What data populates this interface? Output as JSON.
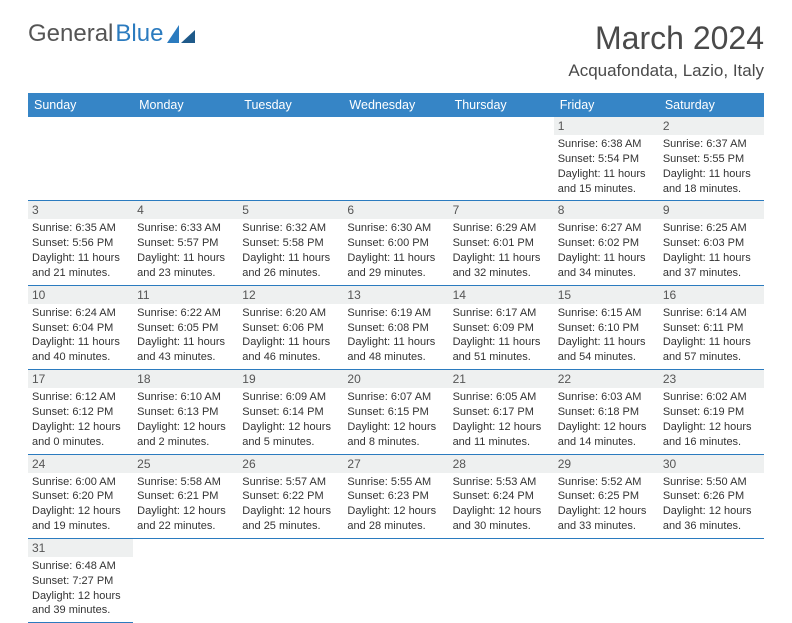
{
  "logo": {
    "general": "General",
    "blue": "Blue"
  },
  "header": {
    "title": "March 2024",
    "location": "Acquafondata, Lazio, Italy"
  },
  "colors": {
    "header_bg": "#3685c6",
    "border": "#2b7bbf",
    "daynum_bg": "#eef0f0"
  },
  "days_of_week": [
    "Sunday",
    "Monday",
    "Tuesday",
    "Wednesday",
    "Thursday",
    "Friday",
    "Saturday"
  ],
  "weeks": [
    [
      null,
      null,
      null,
      null,
      null,
      {
        "n": "1",
        "sr": "6:38 AM",
        "ss": "5:54 PM",
        "dl": "11 hours and 15 minutes."
      },
      {
        "n": "2",
        "sr": "6:37 AM",
        "ss": "5:55 PM",
        "dl": "11 hours and 18 minutes."
      }
    ],
    [
      {
        "n": "3",
        "sr": "6:35 AM",
        "ss": "5:56 PM",
        "dl": "11 hours and 21 minutes."
      },
      {
        "n": "4",
        "sr": "6:33 AM",
        "ss": "5:57 PM",
        "dl": "11 hours and 23 minutes."
      },
      {
        "n": "5",
        "sr": "6:32 AM",
        "ss": "5:58 PM",
        "dl": "11 hours and 26 minutes."
      },
      {
        "n": "6",
        "sr": "6:30 AM",
        "ss": "6:00 PM",
        "dl": "11 hours and 29 minutes."
      },
      {
        "n": "7",
        "sr": "6:29 AM",
        "ss": "6:01 PM",
        "dl": "11 hours and 32 minutes."
      },
      {
        "n": "8",
        "sr": "6:27 AM",
        "ss": "6:02 PM",
        "dl": "11 hours and 34 minutes."
      },
      {
        "n": "9",
        "sr": "6:25 AM",
        "ss": "6:03 PM",
        "dl": "11 hours and 37 minutes."
      }
    ],
    [
      {
        "n": "10",
        "sr": "6:24 AM",
        "ss": "6:04 PM",
        "dl": "11 hours and 40 minutes."
      },
      {
        "n": "11",
        "sr": "6:22 AM",
        "ss": "6:05 PM",
        "dl": "11 hours and 43 minutes."
      },
      {
        "n": "12",
        "sr": "6:20 AM",
        "ss": "6:06 PM",
        "dl": "11 hours and 46 minutes."
      },
      {
        "n": "13",
        "sr": "6:19 AM",
        "ss": "6:08 PM",
        "dl": "11 hours and 48 minutes."
      },
      {
        "n": "14",
        "sr": "6:17 AM",
        "ss": "6:09 PM",
        "dl": "11 hours and 51 minutes."
      },
      {
        "n": "15",
        "sr": "6:15 AM",
        "ss": "6:10 PM",
        "dl": "11 hours and 54 minutes."
      },
      {
        "n": "16",
        "sr": "6:14 AM",
        "ss": "6:11 PM",
        "dl": "11 hours and 57 minutes."
      }
    ],
    [
      {
        "n": "17",
        "sr": "6:12 AM",
        "ss": "6:12 PM",
        "dl": "12 hours and 0 minutes."
      },
      {
        "n": "18",
        "sr": "6:10 AM",
        "ss": "6:13 PM",
        "dl": "12 hours and 2 minutes."
      },
      {
        "n": "19",
        "sr": "6:09 AM",
        "ss": "6:14 PM",
        "dl": "12 hours and 5 minutes."
      },
      {
        "n": "20",
        "sr": "6:07 AM",
        "ss": "6:15 PM",
        "dl": "12 hours and 8 minutes."
      },
      {
        "n": "21",
        "sr": "6:05 AM",
        "ss": "6:17 PM",
        "dl": "12 hours and 11 minutes."
      },
      {
        "n": "22",
        "sr": "6:03 AM",
        "ss": "6:18 PM",
        "dl": "12 hours and 14 minutes."
      },
      {
        "n": "23",
        "sr": "6:02 AM",
        "ss": "6:19 PM",
        "dl": "12 hours and 16 minutes."
      }
    ],
    [
      {
        "n": "24",
        "sr": "6:00 AM",
        "ss": "6:20 PM",
        "dl": "12 hours and 19 minutes."
      },
      {
        "n": "25",
        "sr": "5:58 AM",
        "ss": "6:21 PM",
        "dl": "12 hours and 22 minutes."
      },
      {
        "n": "26",
        "sr": "5:57 AM",
        "ss": "6:22 PM",
        "dl": "12 hours and 25 minutes."
      },
      {
        "n": "27",
        "sr": "5:55 AM",
        "ss": "6:23 PM",
        "dl": "12 hours and 28 minutes."
      },
      {
        "n": "28",
        "sr": "5:53 AM",
        "ss": "6:24 PM",
        "dl": "12 hours and 30 minutes."
      },
      {
        "n": "29",
        "sr": "5:52 AM",
        "ss": "6:25 PM",
        "dl": "12 hours and 33 minutes."
      },
      {
        "n": "30",
        "sr": "5:50 AM",
        "ss": "6:26 PM",
        "dl": "12 hours and 36 minutes."
      }
    ],
    [
      {
        "n": "31",
        "sr": "6:48 AM",
        "ss": "7:27 PM",
        "dl": "12 hours and 39 minutes."
      },
      null,
      null,
      null,
      null,
      null,
      null
    ]
  ],
  "labels": {
    "sunrise": "Sunrise:",
    "sunset": "Sunset:",
    "daylight": "Daylight:"
  }
}
